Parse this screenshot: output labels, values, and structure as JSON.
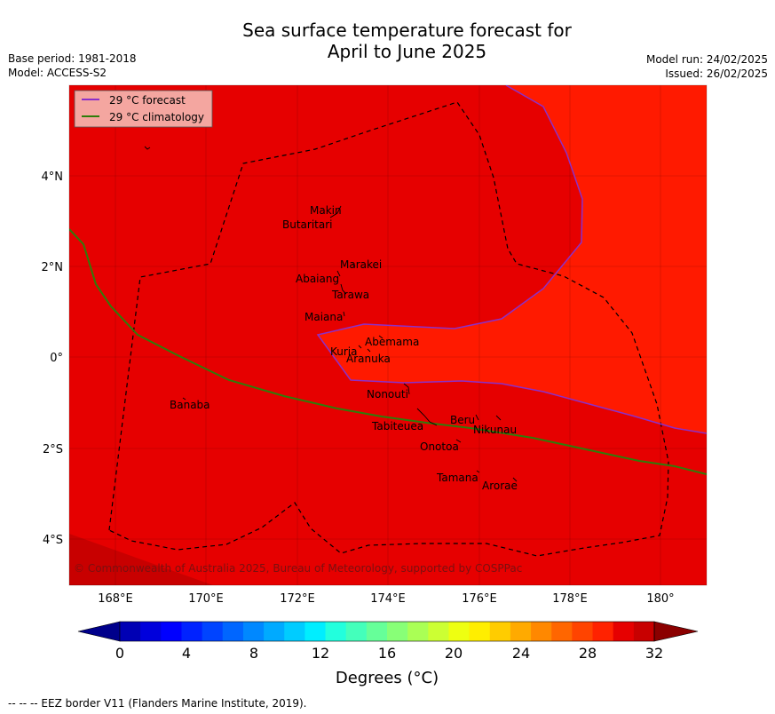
{
  "title_line1": "Sea surface temperature forecast for",
  "title_line2": "April to June 2025",
  "base_period": "Base period: 1981-2018",
  "model": "Model: ACCESS-S2",
  "model_run": "Model run: 24/02/2025",
  "issued": "Issued: 26/02/2025",
  "legend": [
    {
      "label": "29 °C  forecast",
      "color": "#8b2fc9"
    },
    {
      "label": "29 °C  climatology",
      "color": "#2e7d0a"
    }
  ],
  "lat_labels": [
    "4°N",
    "2°N",
    "0°",
    "2°S",
    "4°S"
  ],
  "lon_labels": [
    "168°E",
    "170°E",
    "172°E",
    "174°E",
    "176°E",
    "178°E",
    "180°"
  ],
  "places": [
    {
      "name": "Makin"
    },
    {
      "name": "Butaritari"
    },
    {
      "name": "Marakei"
    },
    {
      "name": "Abaiang"
    },
    {
      "name": "Tarawa"
    },
    {
      "name": "Maiana"
    },
    {
      "name": "Abemama"
    },
    {
      "name": "Kuria"
    },
    {
      "name": "Aranuka"
    },
    {
      "name": "Nonouti"
    },
    {
      "name": "Banaba"
    },
    {
      "name": "Tabiteuea"
    },
    {
      "name": "Beru"
    },
    {
      "name": "Nikunau"
    },
    {
      "name": "Onotoa"
    },
    {
      "name": "Tamana"
    },
    {
      "name": "Arorae"
    }
  ],
  "copyright": "© Commonwealth of Australia 2025, Bureau of Meteorology, supported by COSPPac",
  "colorbar": {
    "ticks": [
      "0",
      "4",
      "8",
      "12",
      "16",
      "20",
      "24",
      "28",
      "32"
    ],
    "label": "Degrees (°C)",
    "colors": [
      "#00008b",
      "#0000b4",
      "#0000dc",
      "#0000ff",
      "#0022ff",
      "#0044ff",
      "#0066ff",
      "#0088ff",
      "#00aaff",
      "#00ccff",
      "#00eeff",
      "#22ffdd",
      "#44ffbb",
      "#66ff99",
      "#88ff77",
      "#aaff55",
      "#ccff33",
      "#eeff11",
      "#ffee00",
      "#ffcc00",
      "#ffaa00",
      "#ff8800",
      "#ff6600",
      "#ff4400",
      "#ff2200",
      "#e60000",
      "#c80000",
      "#8b0000"
    ]
  },
  "footer": "--  --  -- EEZ border V11 (Flanders Marine Institute, 2019).",
  "map_colors": {
    "warm": "#ff1a00",
    "warmer": "#e60000",
    "cooler_corner": "#c80000"
  }
}
